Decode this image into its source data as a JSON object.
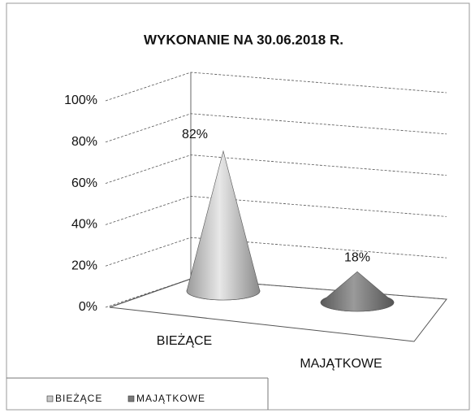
{
  "chart_data": {
    "type": "cone",
    "title": "WYKONANIE  NA 30.06.2018 R.",
    "categories": [
      "BIEŻĄCE",
      "MAJĄTKOWE"
    ],
    "series": [
      {
        "name": "BIEŻĄCE",
        "color": "#c8c8c8",
        "values": [
          82,
          null
        ],
        "value_labels": [
          "82%",
          null
        ]
      },
      {
        "name": "MAJĄTKOWE",
        "color": "#7a7a7a",
        "values": [
          null,
          18
        ],
        "value_labels": [
          null,
          "18%"
        ]
      }
    ],
    "ylim": [
      0,
      100
    ],
    "yticks": [
      {
        "value": 0,
        "label": "0%"
      },
      {
        "value": 20,
        "label": "20%"
      },
      {
        "value": 40,
        "label": "40%"
      },
      {
        "value": 60,
        "label": "60%"
      },
      {
        "value": 80,
        "label": "80%"
      },
      {
        "value": 100,
        "label": "100%"
      }
    ],
    "grid": true,
    "legend": "bottom"
  }
}
